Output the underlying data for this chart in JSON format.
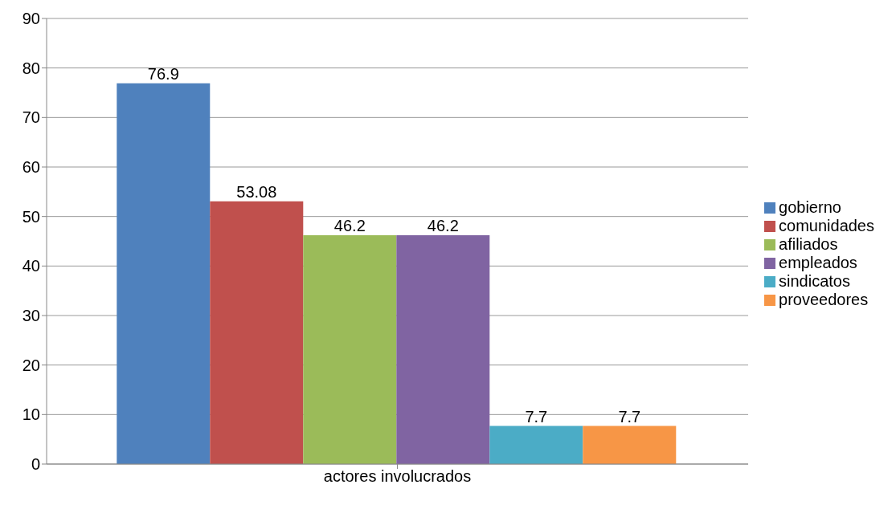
{
  "chart_data": {
    "type": "bar",
    "categories": [
      "actores involucrados"
    ],
    "series": [
      {
        "name": "gobierno",
        "color": "#4f81bd",
        "values": [
          76.9
        ]
      },
      {
        "name": "comunidades",
        "color": "#c0504d",
        "values": [
          53.08
        ]
      },
      {
        "name": "afiliados",
        "color": "#9bbb59",
        "values": [
          46.2
        ]
      },
      {
        "name": "empleados",
        "color": "#8064a2",
        "values": [
          46.2
        ]
      },
      {
        "name": "sindicatos",
        "color": "#4bacc6",
        "values": [
          7.7
        ]
      },
      {
        "name": "proveedores",
        "color": "#f79646",
        "values": [
          7.7
        ]
      }
    ],
    "ylim": [
      0,
      90
    ],
    "yticks": [
      0,
      10,
      20,
      30,
      40,
      50,
      60,
      70,
      80,
      90
    ],
    "grid": "y",
    "legend": "right",
    "data_labels": true
  }
}
